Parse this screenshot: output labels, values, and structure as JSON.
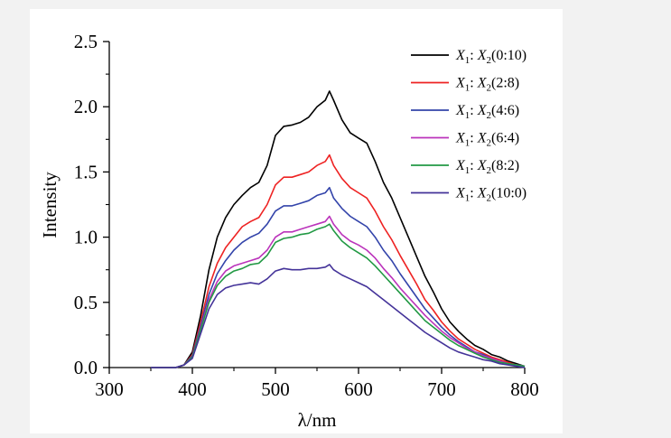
{
  "chart_data": {
    "type": "line",
    "xlabel": "λ/nm",
    "ylabel": "Intensity",
    "xlim": [
      300,
      800
    ],
    "ylim": [
      0,
      2.5
    ],
    "xticks": [
      300,
      400,
      500,
      600,
      700,
      800
    ],
    "yticks": [
      0.0,
      0.5,
      1.0,
      1.5,
      2.0,
      2.5
    ],
    "ytick_labels": [
      "0.0",
      "0.5",
      "1.0",
      "1.5",
      "2.0",
      "2.5"
    ],
    "grid": false,
    "legend_position": "top-right",
    "series": [
      {
        "name": "X1: X2(0:10)",
        "color": "#000000",
        "x": [
          350,
          380,
          390,
          400,
          410,
          420,
          430,
          440,
          450,
          460,
          470,
          480,
          490,
          500,
          510,
          520,
          530,
          540,
          550,
          560,
          565,
          570,
          580,
          590,
          600,
          610,
          620,
          630,
          640,
          650,
          660,
          670,
          680,
          690,
          700,
          710,
          720,
          730,
          740,
          750,
          760,
          770,
          780,
          790,
          800
        ],
        "y": [
          0.0,
          0.0,
          0.02,
          0.12,
          0.4,
          0.75,
          1.0,
          1.15,
          1.25,
          1.32,
          1.38,
          1.42,
          1.55,
          1.78,
          1.85,
          1.86,
          1.88,
          1.92,
          2.0,
          2.05,
          2.12,
          2.05,
          1.9,
          1.8,
          1.76,
          1.72,
          1.58,
          1.42,
          1.3,
          1.15,
          1.0,
          0.85,
          0.7,
          0.58,
          0.45,
          0.35,
          0.28,
          0.22,
          0.17,
          0.14,
          0.1,
          0.08,
          0.05,
          0.03,
          0.01
        ]
      },
      {
        "name": "X1: X2(2:8)",
        "color": "#ee2222",
        "x": [
          350,
          380,
          390,
          400,
          410,
          420,
          430,
          440,
          450,
          460,
          470,
          480,
          490,
          500,
          510,
          520,
          530,
          540,
          550,
          560,
          565,
          570,
          580,
          590,
          600,
          610,
          620,
          630,
          640,
          650,
          660,
          670,
          680,
          690,
          700,
          710,
          720,
          730,
          740,
          750,
          760,
          770,
          780,
          790,
          800
        ],
        "y": [
          0.0,
          0.0,
          0.02,
          0.1,
          0.35,
          0.62,
          0.8,
          0.92,
          1.0,
          1.08,
          1.12,
          1.15,
          1.25,
          1.4,
          1.46,
          1.46,
          1.48,
          1.5,
          1.55,
          1.58,
          1.63,
          1.55,
          1.45,
          1.38,
          1.34,
          1.3,
          1.2,
          1.08,
          0.98,
          0.86,
          0.75,
          0.64,
          0.52,
          0.44,
          0.35,
          0.28,
          0.22,
          0.18,
          0.14,
          0.11,
          0.08,
          0.06,
          0.04,
          0.02,
          0.01
        ]
      },
      {
        "name": "X1: X2(4:6)",
        "color": "#3344aa",
        "x": [
          350,
          380,
          390,
          400,
          410,
          420,
          430,
          440,
          450,
          460,
          470,
          480,
          490,
          500,
          510,
          520,
          530,
          540,
          550,
          560,
          565,
          570,
          580,
          590,
          600,
          610,
          620,
          630,
          640,
          650,
          660,
          670,
          680,
          690,
          700,
          710,
          720,
          730,
          740,
          750,
          760,
          770,
          780,
          790,
          800
        ],
        "y": [
          0.0,
          0.0,
          0.02,
          0.09,
          0.32,
          0.56,
          0.72,
          0.82,
          0.9,
          0.96,
          1.0,
          1.03,
          1.1,
          1.2,
          1.24,
          1.24,
          1.26,
          1.28,
          1.32,
          1.34,
          1.38,
          1.3,
          1.22,
          1.16,
          1.12,
          1.08,
          1.0,
          0.9,
          0.82,
          0.72,
          0.63,
          0.54,
          0.45,
          0.38,
          0.31,
          0.25,
          0.2,
          0.16,
          0.12,
          0.1,
          0.07,
          0.05,
          0.03,
          0.02,
          0.01
        ]
      },
      {
        "name": "X1: X2(6:4)",
        "color": "#bb33bb",
        "x": [
          350,
          380,
          390,
          400,
          410,
          420,
          430,
          440,
          450,
          460,
          470,
          480,
          490,
          500,
          510,
          520,
          530,
          540,
          550,
          560,
          565,
          570,
          580,
          590,
          600,
          610,
          620,
          630,
          640,
          650,
          660,
          670,
          680,
          690,
          700,
          710,
          720,
          730,
          740,
          750,
          760,
          770,
          780,
          790,
          800
        ],
        "y": [
          0.0,
          0.0,
          0.02,
          0.08,
          0.3,
          0.52,
          0.66,
          0.74,
          0.78,
          0.8,
          0.82,
          0.84,
          0.9,
          1.0,
          1.04,
          1.04,
          1.06,
          1.08,
          1.1,
          1.12,
          1.16,
          1.1,
          1.02,
          0.97,
          0.94,
          0.9,
          0.84,
          0.76,
          0.69,
          0.61,
          0.54,
          0.47,
          0.4,
          0.34,
          0.28,
          0.23,
          0.19,
          0.15,
          0.12,
          0.09,
          0.07,
          0.05,
          0.03,
          0.02,
          0.01
        ]
      },
      {
        "name": "X1: X2(8:2)",
        "color": "#229944",
        "x": [
          350,
          380,
          390,
          400,
          410,
          420,
          430,
          440,
          450,
          460,
          470,
          480,
          490,
          500,
          510,
          520,
          530,
          540,
          550,
          560,
          565,
          570,
          580,
          590,
          600,
          610,
          620,
          630,
          640,
          650,
          660,
          670,
          680,
          690,
          700,
          710,
          720,
          730,
          740,
          750,
          760,
          770,
          780,
          790,
          800
        ],
        "y": [
          0.0,
          0.0,
          0.02,
          0.08,
          0.29,
          0.5,
          0.63,
          0.7,
          0.74,
          0.76,
          0.79,
          0.8,
          0.86,
          0.96,
          0.99,
          1.0,
          1.02,
          1.03,
          1.06,
          1.08,
          1.1,
          1.05,
          0.97,
          0.92,
          0.88,
          0.84,
          0.78,
          0.71,
          0.64,
          0.57,
          0.5,
          0.43,
          0.36,
          0.31,
          0.26,
          0.21,
          0.17,
          0.14,
          0.11,
          0.08,
          0.06,
          0.04,
          0.03,
          0.02,
          0.01
        ]
      },
      {
        "name": "X1: X2(10:0)",
        "color": "#443399",
        "x": [
          350,
          380,
          390,
          400,
          410,
          420,
          430,
          440,
          450,
          460,
          470,
          480,
          490,
          500,
          510,
          520,
          530,
          540,
          550,
          560,
          565,
          570,
          580,
          590,
          600,
          610,
          620,
          630,
          640,
          650,
          660,
          670,
          680,
          690,
          700,
          710,
          720,
          730,
          740,
          750,
          760,
          770,
          780,
          790,
          800
        ],
        "y": [
          0.0,
          0.0,
          0.02,
          0.07,
          0.26,
          0.45,
          0.56,
          0.61,
          0.63,
          0.64,
          0.65,
          0.64,
          0.68,
          0.74,
          0.76,
          0.75,
          0.75,
          0.76,
          0.76,
          0.77,
          0.79,
          0.75,
          0.71,
          0.68,
          0.65,
          0.62,
          0.57,
          0.52,
          0.47,
          0.42,
          0.37,
          0.32,
          0.27,
          0.23,
          0.19,
          0.15,
          0.12,
          0.1,
          0.08,
          0.06,
          0.05,
          0.03,
          0.02,
          0.01,
          0.0
        ]
      }
    ]
  },
  "legend": {
    "entries": [
      {
        "x1": "X",
        "s1": "1",
        "sep": ": ",
        "x2": "X",
        "s2": "2",
        "ratio": "(0:10)"
      },
      {
        "x1": "X",
        "s1": "1",
        "sep": ": ",
        "x2": "X",
        "s2": "2",
        "ratio": "(2:8)"
      },
      {
        "x1": "X",
        "s1": "1",
        "sep": ": ",
        "x2": "X",
        "s2": "2",
        "ratio": "(4:6)"
      },
      {
        "x1": "X",
        "s1": "1",
        "sep": ": ",
        "x2": "X",
        "s2": "2",
        "ratio": "(6:4)"
      },
      {
        "x1": "X",
        "s1": "1",
        "sep": ": ",
        "x2": "X",
        "s2": "2",
        "ratio": "(8:2)"
      },
      {
        "x1": "X",
        "s1": "1",
        "sep": ": ",
        "x2": "X",
        "s2": "2",
        "ratio": "(10:0)"
      }
    ]
  }
}
